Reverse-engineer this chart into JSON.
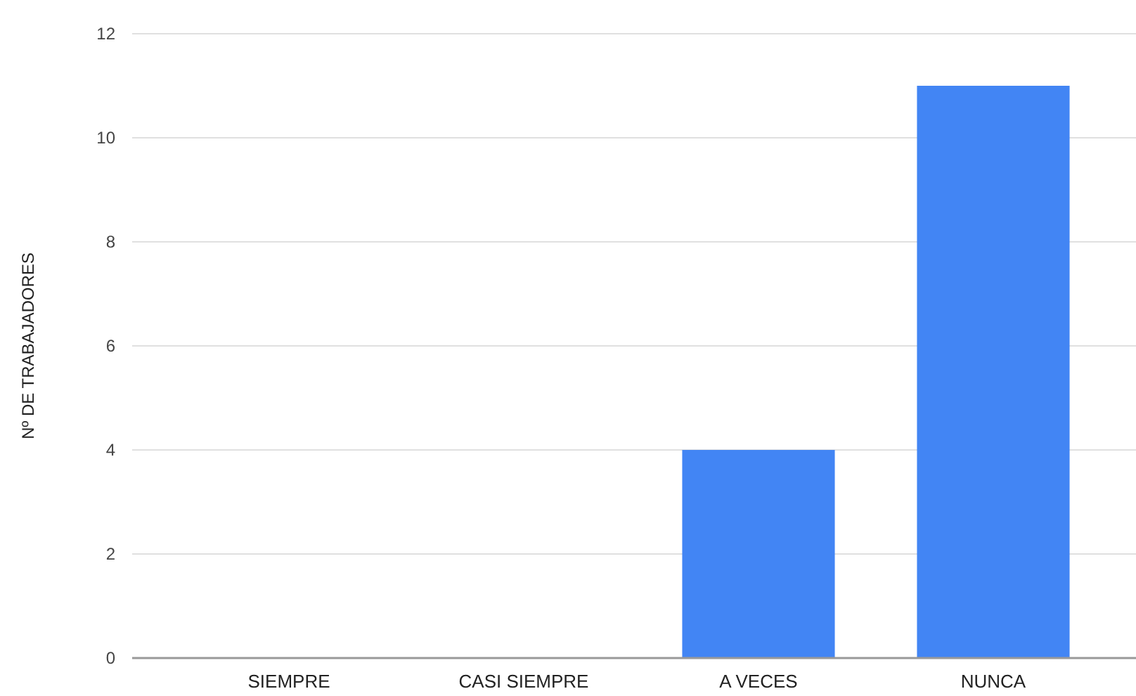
{
  "chart_data": {
    "type": "bar",
    "ylabel": "Nº DE TRABAJADORES",
    "categories": [
      "SIEMPRE",
      "CASI SIEMPRE",
      "A VECES",
      "NUNCA"
    ],
    "values": [
      0,
      0,
      4,
      11
    ],
    "color": "#4285f4",
    "ylim": [
      0,
      12
    ],
    "yticks": [
      0,
      2,
      4,
      6,
      8,
      10,
      12
    ],
    "grid": "y"
  }
}
